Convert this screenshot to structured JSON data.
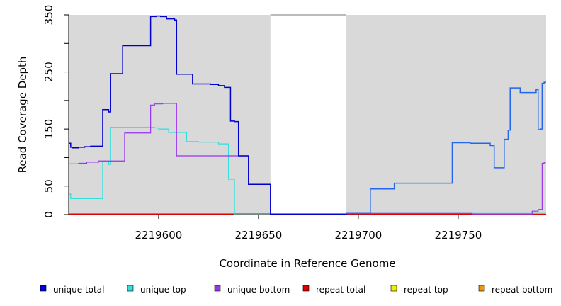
{
  "chart_data": {
    "type": "line",
    "title": "",
    "xlabel": "Coordinate in Reference Genome",
    "ylabel": "Read Coverage Depth",
    "xlim": [
      2219555,
      2219794
    ],
    "ylim": [
      0,
      350
    ],
    "x_ticks": [
      2219600,
      2219650,
      2219700,
      2219750
    ],
    "y_ticks": [
      0,
      50,
      150,
      250,
      350
    ],
    "shaded_regions": [
      [
        2219555,
        2219656
      ],
      [
        2219694,
        2219794
      ]
    ],
    "series": [
      {
        "name": "unique total",
        "color": "#0000cc",
        "step": true,
        "points": [
          [
            2219555,
            125
          ],
          [
            2219556,
            118
          ],
          [
            2219557,
            117
          ],
          [
            2219560,
            118
          ],
          [
            2219563,
            119
          ],
          [
            2219566,
            120
          ],
          [
            2219569,
            120
          ],
          [
            2219572,
            184
          ],
          [
            2219575,
            180
          ],
          [
            2219576,
            247
          ],
          [
            2219582,
            296
          ],
          [
            2219596,
            347
          ],
          [
            2219599,
            348
          ],
          [
            2219601,
            347
          ],
          [
            2219604,
            343
          ],
          [
            2219608,
            341
          ],
          [
            2219609,
            246
          ],
          [
            2219617,
            229
          ],
          [
            2219626,
            228
          ],
          [
            2219630,
            226
          ],
          [
            2219633,
            223
          ],
          [
            2219636,
            164
          ],
          [
            2219638,
            163
          ],
          [
            2219640,
            103
          ],
          [
            2219645,
            53
          ],
          [
            2219656,
            1
          ],
          [
            2219694,
            2
          ],
          [
            2219706,
            45
          ],
          [
            2219718,
            55
          ],
          [
            2219747,
            126
          ],
          [
            2219756,
            125
          ],
          [
            2219766,
            121
          ],
          [
            2219768,
            82
          ],
          [
            2219773,
            132
          ],
          [
            2219775,
            148
          ],
          [
            2219776,
            222
          ],
          [
            2219781,
            214
          ],
          [
            2219789,
            219
          ],
          [
            2219790,
            149
          ],
          [
            2219791,
            150
          ],
          [
            2219792,
            230
          ],
          [
            2219793,
            232
          ],
          [
            2219794,
            232
          ]
        ]
      },
      {
        "name": "unique top",
        "color": "#33dddd",
        "step": true,
        "points": [
          [
            2219555,
            36
          ],
          [
            2219556,
            28
          ],
          [
            2219560,
            28
          ],
          [
            2219572,
            93
          ],
          [
            2219575,
            88
          ],
          [
            2219576,
            153
          ],
          [
            2219598,
            152
          ],
          [
            2219600,
            150
          ],
          [
            2219605,
            144
          ],
          [
            2219614,
            128
          ],
          [
            2219620,
            127
          ],
          [
            2219630,
            124
          ],
          [
            2219635,
            62
          ],
          [
            2219638,
            0
          ],
          [
            2219656,
            0
          ],
          [
            2219694,
            2
          ],
          [
            2219794,
            2
          ]
        ]
      },
      {
        "name": "unique bottom",
        "color": "#9933ee",
        "step": true,
        "points": [
          [
            2219555,
            89
          ],
          [
            2219560,
            90
          ],
          [
            2219564,
            92
          ],
          [
            2219570,
            94
          ],
          [
            2219583,
            143
          ],
          [
            2219596,
            192
          ],
          [
            2219598,
            194
          ],
          [
            2219602,
            195
          ],
          [
            2219609,
            103
          ],
          [
            2219638,
            103
          ],
          [
            2219645,
            53
          ],
          [
            2219656,
            0
          ],
          [
            2219694,
            2
          ],
          [
            2219755,
            2
          ],
          [
            2219757,
            1
          ],
          [
            2219787,
            6
          ],
          [
            2219790,
            9
          ],
          [
            2219792,
            90
          ],
          [
            2219793,
            92
          ],
          [
            2219794,
            92
          ]
        ]
      },
      {
        "name": "repeat total",
        "color": "#dd0000",
        "step": true,
        "points": [
          [
            2219555,
            1
          ],
          [
            2219794,
            1
          ]
        ]
      },
      {
        "name": "repeat top",
        "color": "#eeee00",
        "step": true,
        "points": [
          [
            2219555,
            0
          ],
          [
            2219794,
            0
          ]
        ]
      },
      {
        "name": "repeat bottom",
        "color": "#ee9900",
        "step": true,
        "points": [
          [
            2219555,
            0
          ],
          [
            2219794,
            0
          ]
        ]
      }
    ],
    "legend": {
      "placement": "bottom",
      "entries": [
        {
          "label": "unique total",
          "color": "#0000dd"
        },
        {
          "label": "unique top",
          "color": "#33dddd"
        },
        {
          "label": "unique bottom",
          "color": "#9933ee"
        },
        {
          "label": "repeat total",
          "color": "#dd0000"
        },
        {
          "label": "repeat top",
          "color": "#eeee00"
        },
        {
          "label": "repeat bottom",
          "color": "#ee9900"
        }
      ]
    },
    "colors": {
      "plot_background": "#d9d9d9",
      "gap_background": "#ffffff",
      "unique_total_right_segment": "#2266ee"
    }
  }
}
